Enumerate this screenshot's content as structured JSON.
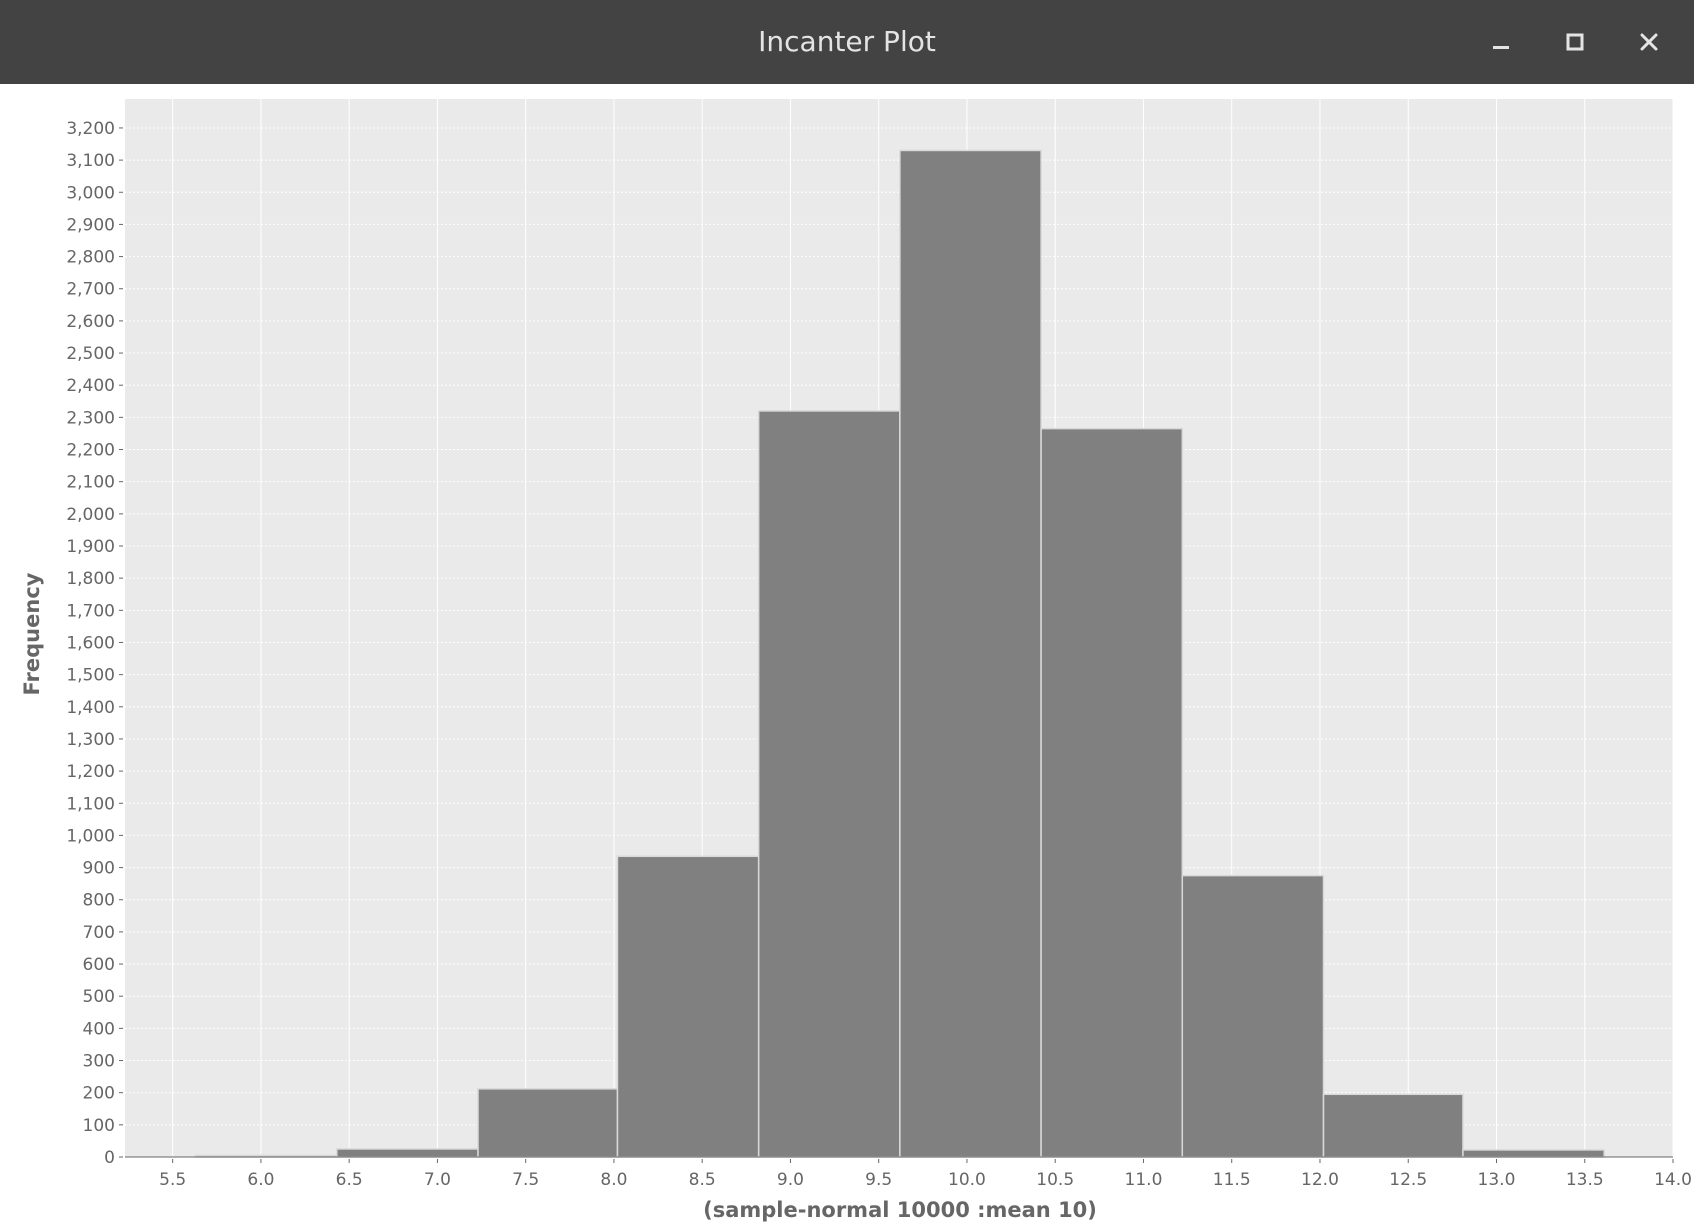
{
  "window": {
    "title": "Incanter Plot",
    "icons": {
      "minimize": "minimize-icon",
      "maximize": "maximize-icon",
      "close": "close-icon"
    }
  },
  "colors": {
    "titlebar": "#434343",
    "plot_background": "#eaeaea",
    "bar_fill": "#808080",
    "bar_edge": "#d9d9d9",
    "axis_text": "#666666"
  },
  "chart_data": {
    "type": "bar",
    "title": "",
    "xlabel": "(sample-normal 10000 :mean 10)",
    "ylabel": "Frequency",
    "xlim": [
      5.23,
      14.0
    ],
    "ylim": [
      0,
      3290
    ],
    "x_ticks": [
      "5.5",
      "6.0",
      "6.5",
      "7.0",
      "7.5",
      "8.0",
      "8.5",
      "9.0",
      "9.5",
      "10.0",
      "10.5",
      "11.0",
      "11.5",
      "12.0",
      "12.5",
      "13.0",
      "13.5",
      "14.0"
    ],
    "y_ticks": [
      "0",
      "100",
      "200",
      "300",
      "400",
      "500",
      "600",
      "700",
      "800",
      "900",
      "1,000",
      "1,100",
      "1,200",
      "1,300",
      "1,400",
      "1,500",
      "1,600",
      "1,700",
      "1,800",
      "1,900",
      "2,000",
      "2,100",
      "2,200",
      "2,300",
      "2,400",
      "2,500",
      "2,600",
      "2,700",
      "2,800",
      "2,900",
      "3,000",
      "3,100",
      "3,200"
    ],
    "grid": true,
    "bins": [
      {
        "start": 5.63,
        "end": 6.43,
        "count": 5
      },
      {
        "start": 6.43,
        "end": 7.23,
        "count": 25
      },
      {
        "start": 7.23,
        "end": 8.02,
        "count": 212
      },
      {
        "start": 8.02,
        "end": 8.82,
        "count": 935
      },
      {
        "start": 8.82,
        "end": 9.62,
        "count": 2320
      },
      {
        "start": 9.62,
        "end": 10.42,
        "count": 3130
      },
      {
        "start": 10.42,
        "end": 11.22,
        "count": 2265
      },
      {
        "start": 11.22,
        "end": 12.02,
        "count": 875
      },
      {
        "start": 12.02,
        "end": 12.81,
        "count": 195
      },
      {
        "start": 12.81,
        "end": 13.61,
        "count": 22
      }
    ]
  }
}
